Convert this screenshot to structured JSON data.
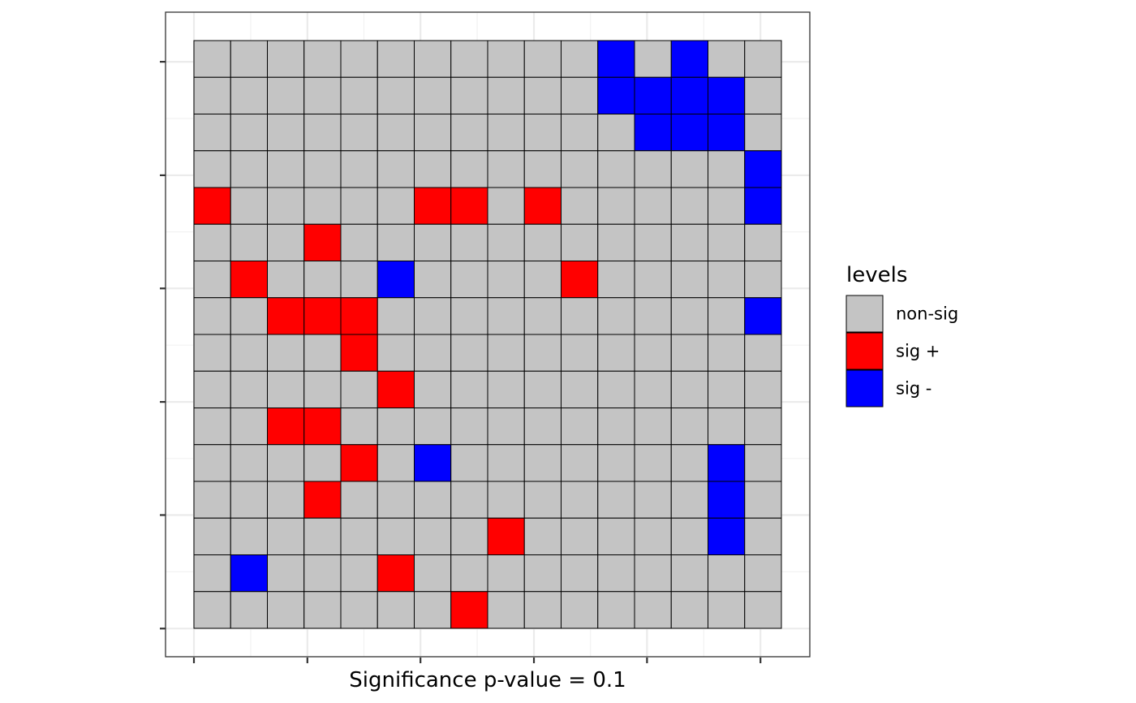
{
  "chart_data": {
    "type": "heatmap",
    "title": "",
    "xlabel": "Significance p-value = 0.1",
    "ylabel": "",
    "grid": true,
    "legend_position": "right",
    "legend": {
      "title": "levels",
      "entries": [
        {
          "label": "non-sig",
          "code": 0,
          "color": "#C4C4C4"
        },
        {
          "label": "sig +",
          "code": 1,
          "color": "#FF0000"
        },
        {
          "label": "sig -",
          "code": 2,
          "color": "#0000FF"
        }
      ]
    },
    "n_rows": 16,
    "n_cols": 16,
    "cell_border_color": "#000000",
    "rows": [
      [
        0,
        0,
        0,
        0,
        0,
        0,
        0,
        0,
        0,
        0,
        0,
        2,
        0,
        2,
        0,
        0
      ],
      [
        0,
        0,
        0,
        0,
        0,
        0,
        0,
        0,
        0,
        0,
        0,
        2,
        2,
        2,
        2,
        0
      ],
      [
        0,
        0,
        0,
        0,
        0,
        0,
        0,
        0,
        0,
        0,
        0,
        0,
        2,
        2,
        2,
        0
      ],
      [
        0,
        0,
        0,
        0,
        0,
        0,
        0,
        0,
        0,
        0,
        0,
        0,
        0,
        0,
        0,
        2
      ],
      [
        1,
        0,
        0,
        0,
        0,
        0,
        1,
        1,
        0,
        1,
        0,
        0,
        0,
        0,
        0,
        2
      ],
      [
        0,
        0,
        0,
        1,
        0,
        0,
        0,
        0,
        0,
        0,
        0,
        0,
        0,
        0,
        0,
        0
      ],
      [
        0,
        1,
        0,
        0,
        0,
        2,
        0,
        0,
        0,
        0,
        1,
        0,
        0,
        0,
        0,
        0
      ],
      [
        0,
        0,
        1,
        1,
        1,
        0,
        0,
        0,
        0,
        0,
        0,
        0,
        0,
        0,
        0,
        2
      ],
      [
        0,
        0,
        0,
        0,
        1,
        0,
        0,
        0,
        0,
        0,
        0,
        0,
        0,
        0,
        0,
        0
      ],
      [
        0,
        0,
        0,
        0,
        0,
        1,
        0,
        0,
        0,
        0,
        0,
        0,
        0,
        0,
        0,
        0
      ],
      [
        0,
        0,
        1,
        1,
        0,
        0,
        0,
        0,
        0,
        0,
        0,
        0,
        0,
        0,
        0,
        0
      ],
      [
        0,
        0,
        0,
        0,
        1,
        0,
        2,
        0,
        0,
        0,
        0,
        0,
        0,
        0,
        2,
        0
      ],
      [
        0,
        0,
        0,
        1,
        0,
        0,
        0,
        0,
        0,
        0,
        0,
        0,
        0,
        0,
        2,
        0
      ],
      [
        0,
        0,
        0,
        0,
        0,
        0,
        0,
        0,
        1,
        0,
        0,
        0,
        0,
        0,
        2,
        0
      ],
      [
        0,
        2,
        0,
        0,
        0,
        1,
        0,
        0,
        0,
        0,
        0,
        0,
        0,
        0,
        0,
        0
      ],
      [
        0,
        0,
        0,
        0,
        0,
        0,
        0,
        1,
        0,
        0,
        0,
        0,
        0,
        0,
        0,
        0
      ]
    ]
  }
}
